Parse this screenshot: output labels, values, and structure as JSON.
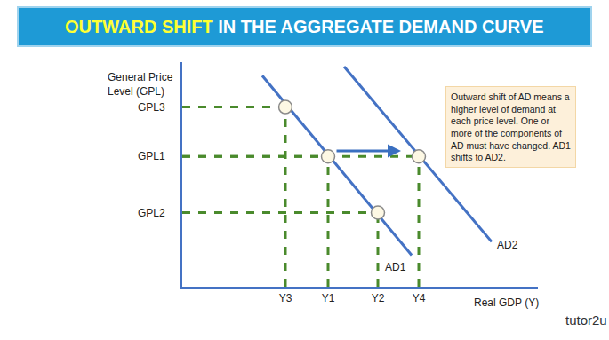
{
  "chart_data": {
    "type": "line",
    "title": "OUTWARD SHIFT IN THE AGGREGATE DEMAND CURVE",
    "title_highlight": "OUTWARD SHIFT",
    "y_label": [
      "General Price",
      "Level (GPL)"
    ],
    "x_label": "Real GDP (Y)",
    "xlim": [
      0,
      100
    ],
    "ylim": [
      0,
      100
    ],
    "xticks": [
      {
        "value": 29,
        "label": "Y3"
      },
      {
        "value": 41,
        "label": "Y1"
      },
      {
        "value": 55,
        "label": "Y2"
      },
      {
        "value": 66.5,
        "label": "Y4"
      }
    ],
    "yticks": [
      {
        "value": 33,
        "label": "GPL2"
      },
      {
        "value": 58,
        "label": "GPL1"
      },
      {
        "value": 80,
        "label": "GPL3"
      }
    ],
    "series": [
      {
        "name": "AD1",
        "color": "#4472c4",
        "x": [
          22.5,
          64.5
        ],
        "values": [
          94,
          14
        ]
      },
      {
        "name": "AD2",
        "color": "#4472c4",
        "x": [
          45.5,
          87
        ],
        "values": [
          98,
          20
        ]
      }
    ],
    "points": {
      "x": [
        29,
        41,
        55,
        66.5
      ],
      "values": [
        80,
        58,
        33,
        58
      ]
    },
    "note": [
      "Outward shift of AD means a",
      "higher level of demand at",
      "each price level. One or",
      "more of the components of",
      "AD must have changed. AD1",
      "shifts to AD2."
    ],
    "logo": "tutor2u",
    "grid": false
  }
}
